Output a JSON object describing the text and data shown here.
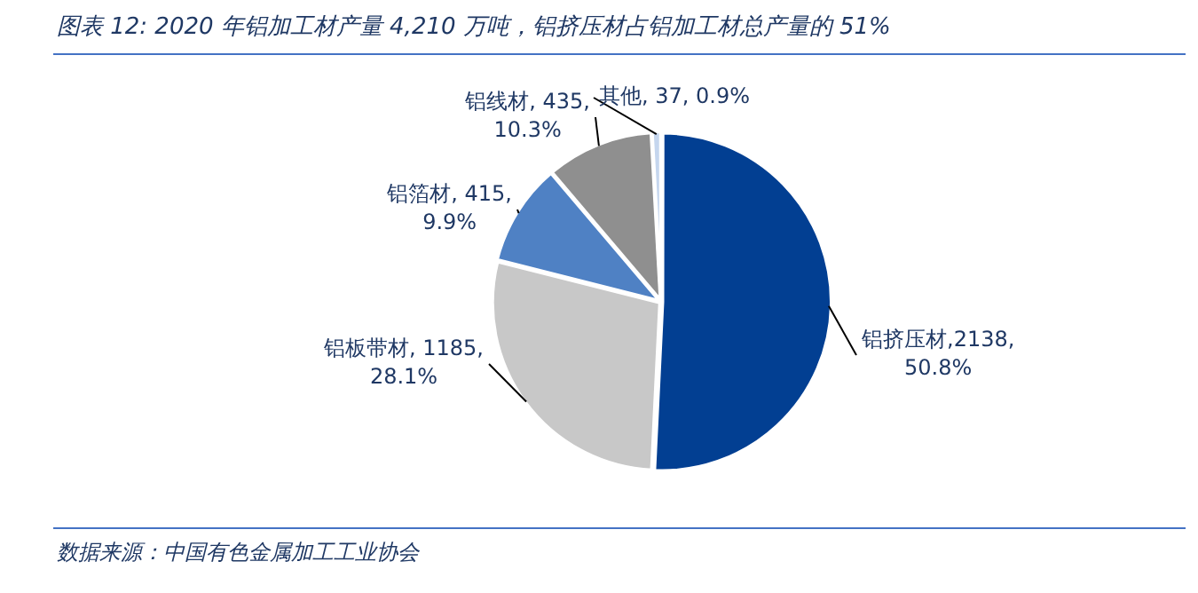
{
  "chart_data": {
    "type": "pie",
    "title": "图表 12:  2020 年铝加工材产量 4,210 万吨，铝挤压材占铝加工材总产量的 51%",
    "categories": [
      "铝挤压材",
      "铝板带材",
      "铝箔材",
      "铝线材",
      "其他"
    ],
    "values": [
      2138,
      1185,
      415,
      435,
      37
    ],
    "colors": [
      "#023f92",
      "#c8c8c8",
      "#4f81c4",
      "#8f8f8f",
      "#c5d6ee"
    ],
    "value_labels": [
      ",2138,\n50.8%",
      ", 1185,\n28.1%",
      ", 415,\n9.9%",
      ", 435,\n10.3%",
      ", 37, 0.9%"
    ],
    "legend": false,
    "annotations": [
      "数据来源：中国有色金属加工工业协会"
    ]
  }
}
